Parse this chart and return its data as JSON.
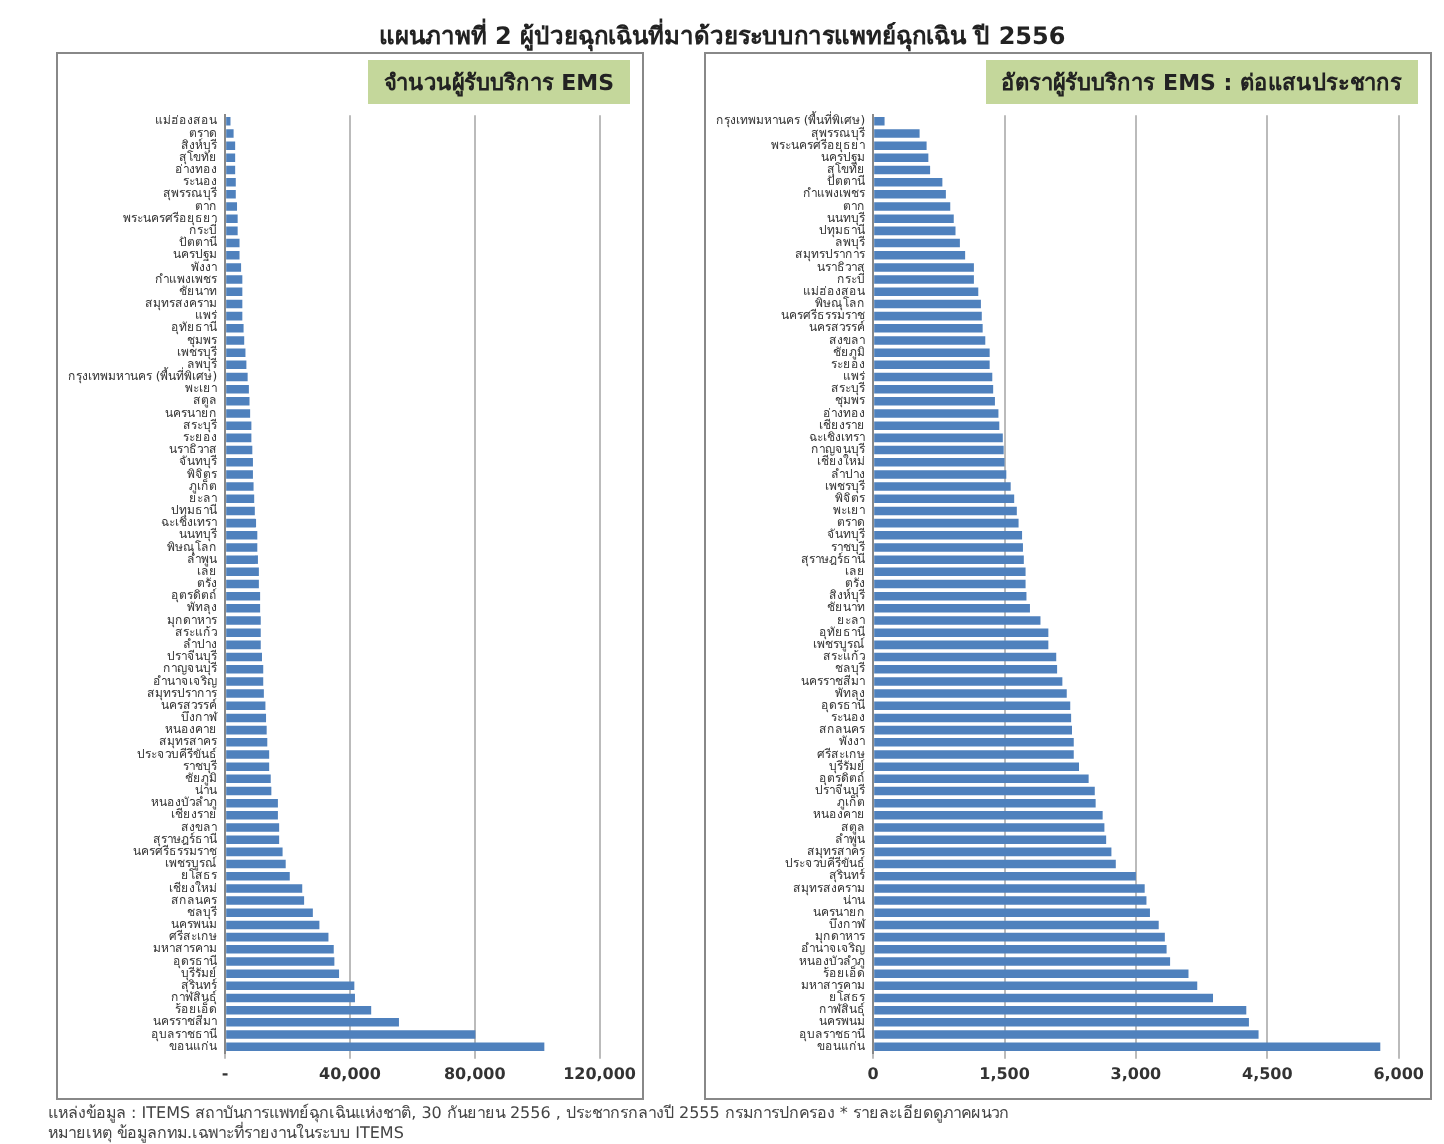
{
  "chart_data": [
    {
      "type": "other",
      "title": "แผนภาพที่ 2 ผู้ป่วยฉุกเฉินที่มาด้วยระบบการแพทย์ฉุกเฉิน ปี 2556"
    },
    {
      "type": "bar",
      "orientation": "horizontal",
      "title": "จำนวนผู้รับบริการ EMS",
      "color": "#4f81bd",
      "grid": "x",
      "legend": false,
      "categories": [
        "แม่ฮ่องสอน",
        "ตราด",
        "สิงห์บุรี",
        "สุโขทัย",
        "อ่างทอง",
        "ระนอง",
        "สุพรรณบุรี",
        "ตาก",
        "พระนครศรีอยุธยา",
        "กระบี่",
        "ปัตตานี",
        "นครปฐม",
        "พังงา",
        "กำแพงเพชร",
        "ชัยนาท",
        "สมุทรสงคราม",
        "แพร่",
        "อุทัยธานี",
        "ชุมพร",
        "เพชรบุรี",
        "ลพบุรี",
        "กรุงเทพมหานคร (พื้นที่พิเศษ)",
        "พะเยา",
        "สตูล",
        "นครนายก",
        "สระบุรี",
        "ระยอง",
        "นราธิวาส",
        "จันทบุรี",
        "พิจิตร",
        "ภูเก็ต",
        "ยะลา",
        "ปทุมธานี",
        "ฉะเชิงเทรา",
        "นนทบุรี",
        "พิษณุโลก",
        "ลำพูน",
        "เลย",
        "ตรัง",
        "อุตรดิตถ์",
        "พัทลุง",
        "มุกดาหาร",
        "สระแก้ว",
        "ลำปาง",
        "ปราจีนบุรี",
        "กาญจนบุรี",
        "อำนาจเจริญ",
        "สมุทรปราการ",
        "นครสวรรค์",
        "บึงกาฬ",
        "หนองคาย",
        "สมุทรสาคร",
        "ประจวบคีรีขันธ์",
        "ราชบุรี",
        "ชัยภูมิ",
        "น่าน",
        "หนองบัวลำภู",
        "เชียงราย",
        "สงขลา",
        "สุราษฎร์ธานี",
        "นครศรีธรรมราช",
        "เพชรบูรณ์",
        "ยโสธร",
        "เชียงใหม่",
        "สกลนคร",
        "ชลบุรี",
        "นครพนม",
        "ศรีสะเกษ",
        "มหาสารคาม",
        "อุดรธานี",
        "บุรีรัมย์",
        "สุรินทร์",
        "กาฬสินธุ์",
        "ร้อยเอ็ด",
        "นครราชสีมา",
        "อุบลราชธานี",
        "ขอนแก่น"
      ],
      "values": [
        1700,
        2700,
        3200,
        3200,
        3200,
        3400,
        3400,
        3800,
        4000,
        4000,
        4600,
        4600,
        5100,
        5500,
        5500,
        5500,
        5500,
        5900,
        6100,
        6500,
        6800,
        7200,
        7600,
        7800,
        8000,
        8400,
        8400,
        8700,
        8900,
        8900,
        9100,
        9300,
        9500,
        9900,
        10300,
        10300,
        10500,
        10800,
        10800,
        11200,
        11200,
        11400,
        11400,
        11400,
        11800,
        12200,
        12200,
        12400,
        12900,
        13100,
        13300,
        13500,
        14100,
        14100,
        14600,
        14800,
        16900,
        16900,
        17300,
        17300,
        18400,
        19400,
        20700,
        24700,
        25300,
        28100,
        30200,
        33100,
        34800,
        35000,
        36500,
        41400,
        41600,
        46800,
        55700,
        80200,
        102300
      ],
      "xlim": [
        0,
        120000
      ],
      "xticks": [
        {
          "value": 0,
          "label": "-"
        },
        {
          "value": 40000,
          "label": "40,000"
        },
        {
          "value": 80000,
          "label": "80,000"
        },
        {
          "value": 120000,
          "label": "120,000"
        }
      ]
    },
    {
      "type": "bar",
      "orientation": "horizontal",
      "title": "อัตราผู้รับบริการ EMS : ต่อแสนประชากร",
      "color": "#4f81bd",
      "grid": "x",
      "legend": false,
      "categories": [
        "กรุงเทพมหานคร (พื้นที่พิเศษ)",
        "สุพรรณบุรี",
        "พระนครศรีอยุธยา",
        "นครปฐม",
        "สุโขทัย",
        "ปัตตานี",
        "กำแพงเพชร",
        "ตาก",
        "นนทบุรี",
        "ปทุมธานี",
        "ลพบุรี",
        "สมุทรปราการ",
        "นราธิวาส",
        "กระบี่",
        "แม่ฮ่องสอน",
        "พิษณุโลก",
        "นครศรีธรรมราช",
        "นครสวรรค์",
        "สงขลา",
        "ชัยภูมิ",
        "ระยอง",
        "แพร่",
        "สระบุรี",
        "ชุมพร",
        "อ่างทอง",
        "เชียงราย",
        "ฉะเชิงเทรา",
        "กาญจนบุรี",
        "เชียงใหม่",
        "ลำปาง",
        "เพชรบุรี",
        "พิจิตร",
        "พะเยา",
        "ตราด",
        "จันทบุรี",
        "ราชบุรี",
        "สุราษฎร์ธานี",
        "เลย",
        "ตรัง",
        "สิงห์บุรี",
        "ชัยนาท",
        "ยะลา",
        "อุทัยธานี",
        "เพชรบูรณ์",
        "สระแก้ว",
        "ชลบุรี",
        "นครราชสีมา",
        "พัทลุง",
        "อุดรธานี",
        "ระนอง",
        "สกลนคร",
        "พังงา",
        "ศรีสะเกษ",
        "บุรีรัมย์",
        "อุตรดิตถ์",
        "ปราจีนบุรี",
        "ภูเก็ต",
        "หนองคาย",
        "สตูล",
        "ลำพูน",
        "สมุทรสาคร",
        "ประจวบคีรีขันธ์",
        "สุรินทร์",
        "สมุทรสงคราม",
        "น่าน",
        "นครนายก",
        "บึงกาฬ",
        "มุกดาหาร",
        "อำนาจเจริญ",
        "หนองบัวลำภู",
        "ร้อยเอ็ด",
        "มหาสารคาม",
        "ยโสธร",
        "กาฬสินธุ์",
        "นครพนม",
        "อุบลราชธานี",
        "ขอนแก่น"
      ],
      "values": [
        130,
        530,
        610,
        630,
        650,
        790,
        830,
        880,
        920,
        940,
        990,
        1050,
        1150,
        1150,
        1200,
        1230,
        1240,
        1250,
        1280,
        1330,
        1330,
        1360,
        1370,
        1390,
        1430,
        1440,
        1480,
        1490,
        1500,
        1520,
        1570,
        1610,
        1640,
        1660,
        1700,
        1710,
        1720,
        1740,
        1740,
        1750,
        1790,
        1910,
        2000,
        2000,
        2090,
        2100,
        2160,
        2210,
        2250,
        2260,
        2270,
        2290,
        2290,
        2350,
        2460,
        2530,
        2540,
        2620,
        2640,
        2660,
        2720,
        2770,
        3000,
        3100,
        3120,
        3160,
        3260,
        3330,
        3350,
        3390,
        3600,
        3700,
        3880,
        4260,
        4290,
        4400,
        5790
      ],
      "xlim": [
        0,
        6000
      ],
      "xticks": [
        0,
        {
          "value": 1500,
          "label": "1,500"
        },
        {
          "value": 3000,
          "label": "3,000"
        },
        {
          "value": 4500,
          "label": "4,500"
        },
        {
          "value": 6000,
          "label": "6,000"
        }
      ]
    },
    {
      "type": "other",
      "annotations": [
        "แหล่งข้อมูล : ITEMS สถาบันการแพทย์ฉุกเฉินแห่งชาติ, 30 กันยายน 2556 , ประชากรกลางปี 2555 กรมการปกครอง * รายละเอียดดูภาคผนวก",
        "หมายเหตุ ข้อมูลกทม.เฉพาะที่รายงานในระบบ ITEMS"
      ]
    }
  ]
}
